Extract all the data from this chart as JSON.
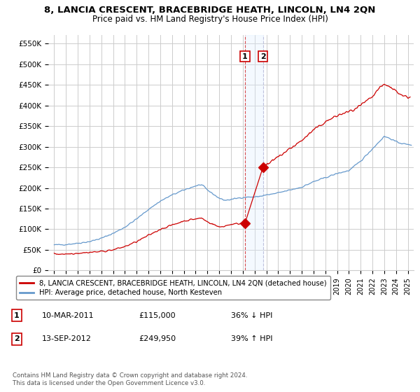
{
  "title": "8, LANCIA CRESCENT, BRACEBRIDGE HEATH, LINCOLN, LN4 2QN",
  "subtitle": "Price paid vs. HM Land Registry's House Price Index (HPI)",
  "ylabel_ticks": [
    "£0",
    "£50K",
    "£100K",
    "£150K",
    "£200K",
    "£250K",
    "£300K",
    "£350K",
    "£400K",
    "£450K",
    "£500K",
    "£550K"
  ],
  "ytick_values": [
    0,
    50000,
    100000,
    150000,
    200000,
    250000,
    300000,
    350000,
    400000,
    450000,
    500000,
    550000
  ],
  "ylim": [
    0,
    570000
  ],
  "xlim_start": 1994.5,
  "xlim_end": 2025.5,
  "sale1_x": 2011.19,
  "sale1_y": 115000,
  "sale2_x": 2012.71,
  "sale2_y": 249950,
  "line1_color": "#cc0000",
  "line2_color": "#6699cc",
  "shade_color": "#ddeeff",
  "dashed_color": "#cc0000",
  "legend1_label": "8, LANCIA CRESCENT, BRACEBRIDGE HEATH, LINCOLN, LN4 2QN (detached house)",
  "legend2_label": "HPI: Average price, detached house, North Kesteven",
  "sale1_date": "10-MAR-2011",
  "sale1_price": "£115,000",
  "sale1_hpi": "36% ↓ HPI",
  "sale2_date": "13-SEP-2012",
  "sale2_price": "£249,950",
  "sale2_hpi": "39% ↑ HPI",
  "footnote": "Contains HM Land Registry data © Crown copyright and database right 2024.\nThis data is licensed under the Open Government Licence v3.0.",
  "background_color": "#ffffff",
  "grid_color": "#cccccc",
  "title_fontsize": 9.5,
  "subtitle_fontsize": 8.5
}
